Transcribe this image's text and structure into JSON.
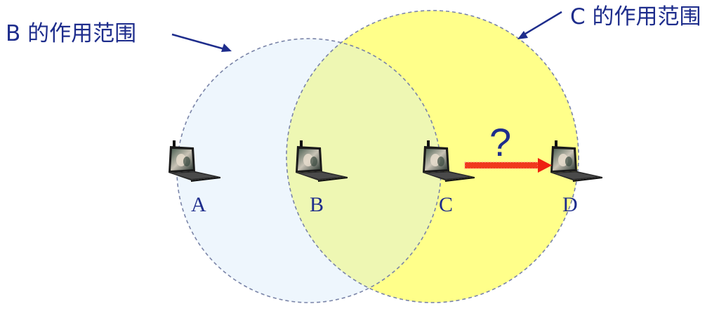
{
  "labels": {
    "b_range": "B 的作用范围",
    "c_range": "C 的作用范围",
    "question": "?"
  },
  "nodes": [
    {
      "id": "A",
      "label": "A"
    },
    {
      "id": "B",
      "label": "B"
    },
    {
      "id": "C",
      "label": "C"
    },
    {
      "id": "D",
      "label": "D"
    }
  ],
  "colors": {
    "b_range_fill": "#eef6fd",
    "c_range_fill": "#ffff8a",
    "overlap_fill": "#eef7b3",
    "circle_stroke": "#7a84a8",
    "label_color": "#1e2d8c",
    "arrow_color": "#ee2211"
  }
}
